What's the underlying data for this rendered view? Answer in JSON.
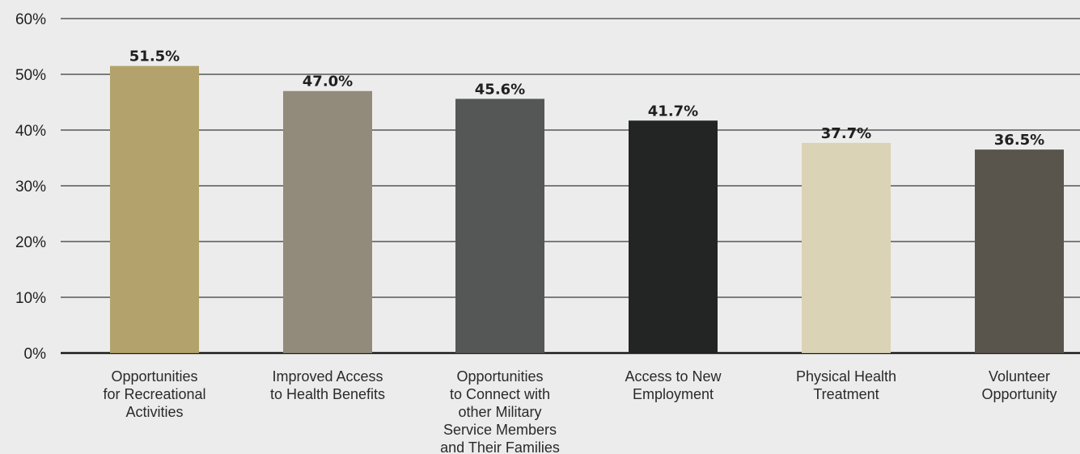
{
  "chart_data": {
    "type": "bar",
    "title": "",
    "xlabel": "",
    "ylabel": "",
    "ylim": [
      0,
      60
    ],
    "yticks": [
      0,
      10,
      20,
      30,
      40,
      50,
      60
    ],
    "ytick_labels": [
      "0%",
      "10%",
      "20%",
      "30%",
      "40%",
      "50%",
      "60%"
    ],
    "grid": true,
    "legend": "none",
    "categories": [
      "Opportunities\nfor Recreational\nActivities",
      "Improved Access\nto Health Benefits",
      "Opportunities\nto Connect with\nother Military\nService Members\nand Their Families",
      "Access to New\nEmployment",
      "Physical Health\nTreatment",
      "Volunteer\nOpportunity"
    ],
    "values": [
      51.5,
      47.0,
      45.6,
      41.7,
      37.7,
      36.5
    ],
    "value_labels": [
      "51.5%",
      "47.0%",
      "45.6%",
      "41.7%",
      "37.7%",
      "36.5%"
    ],
    "colors": [
      "#b3a26b",
      "#928b7b",
      "#545755",
      "#232524",
      "#dbd3b6",
      "#59544c"
    ],
    "gridline_color": "#3a3a3a",
    "axis_color": "#1a1a1a"
  }
}
